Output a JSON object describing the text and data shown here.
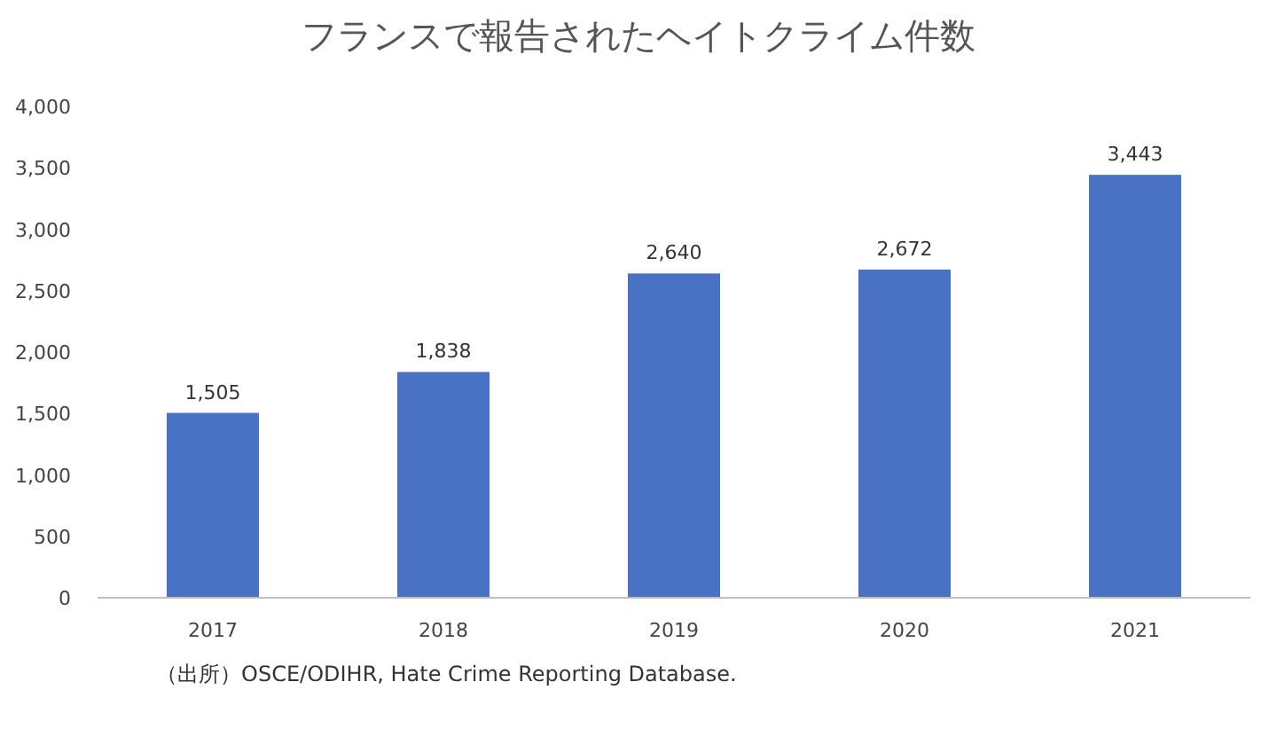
{
  "chart_data": {
    "type": "bar",
    "title": "フランスで報告されたヘイトクライム件数",
    "categories": [
      "2017",
      "2018",
      "2019",
      "2020",
      "2021"
    ],
    "values": [
      1505,
      1838,
      2640,
      2672,
      3443
    ],
    "value_labels": [
      "1,505",
      "1,838",
      "2,640",
      "2,672",
      "3,443"
    ],
    "color": "#4a72c4",
    "ylim": [
      0,
      4000
    ],
    "yticks": [
      {
        "value": 0,
        "label": "0"
      },
      {
        "value": 500,
        "label": "500"
      },
      {
        "value": 1000,
        "label": "1,000"
      },
      {
        "value": 1500,
        "label": "1,500"
      },
      {
        "value": 2000,
        "label": "2,000"
      },
      {
        "value": 2500,
        "label": "2,500"
      },
      {
        "value": 3000,
        "label": "3,000"
      },
      {
        "value": 3500,
        "label": "3,500"
      },
      {
        "value": 4000,
        "label": "4,000"
      }
    ],
    "annotations": [
      "（出所）OSCE/ODIHR, Hate Crime Reporting Database."
    ]
  }
}
